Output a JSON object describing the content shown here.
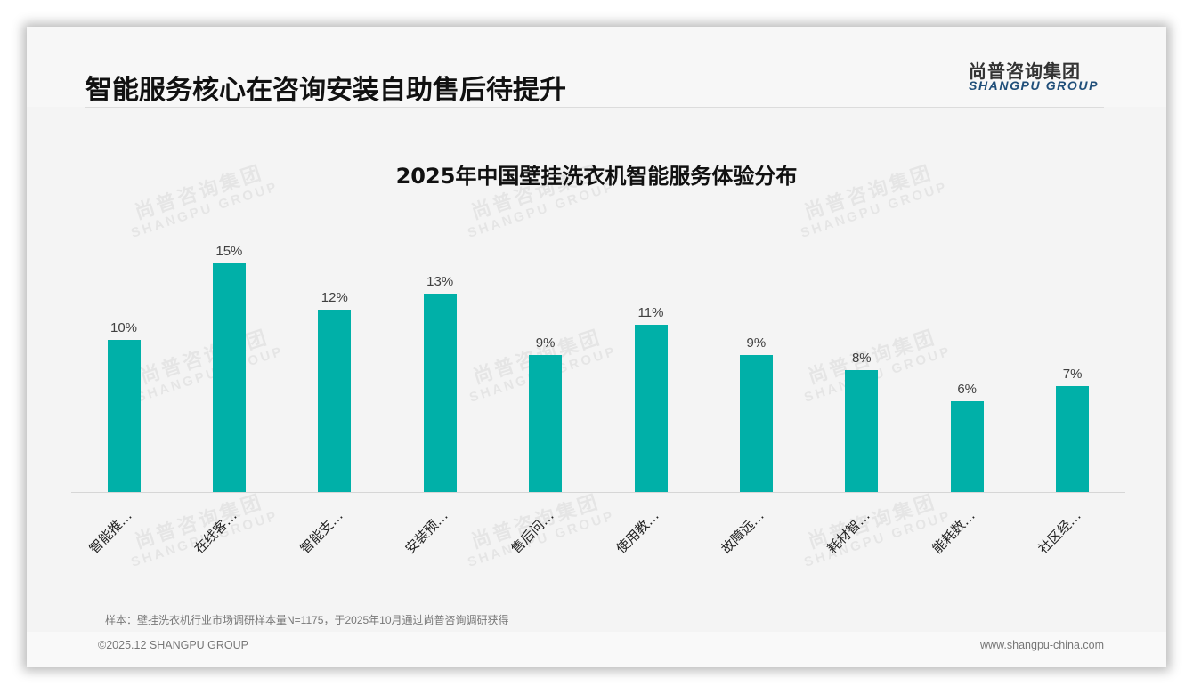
{
  "header": {
    "title": "智能服务核心在咨询安装自助售后待提升",
    "logo_cn": "尚普咨询集团",
    "logo_en": "SHANGPU GROUP"
  },
  "watermark": {
    "cn": "尚普咨询集团",
    "en": "SHANGPU GROUP"
  },
  "colors": {
    "bar": "#00b0a8",
    "logo_en": "#1f4e79"
  },
  "chart_data": {
    "type": "bar",
    "title": "2025年中国壁挂洗衣机智能服务体验分布",
    "categories": [
      "智能推…",
      "在线客…",
      "智能支…",
      "安装预…",
      "售后问…",
      "使用教…",
      "故障远…",
      "耗材智…",
      "能耗数…",
      "社区经…"
    ],
    "values": [
      10,
      15,
      12,
      13,
      9,
      11,
      9,
      8,
      6,
      7
    ],
    "value_labels": [
      "10%",
      "15%",
      "12%",
      "13%",
      "9%",
      "11%",
      "9%",
      "8%",
      "6%",
      "7%"
    ],
    "unit": "%",
    "xlabel": "",
    "ylabel": "",
    "ylim": [
      0,
      16
    ],
    "grid": false,
    "legend": "none"
  },
  "footer": {
    "source": "样本：壁挂洗衣机行业市场调研样本量N=1175，于2025年10月通过尚普咨询调研获得",
    "copyright": "©2025.12 SHANGPU GROUP",
    "website": "www.shangpu-china.com"
  }
}
